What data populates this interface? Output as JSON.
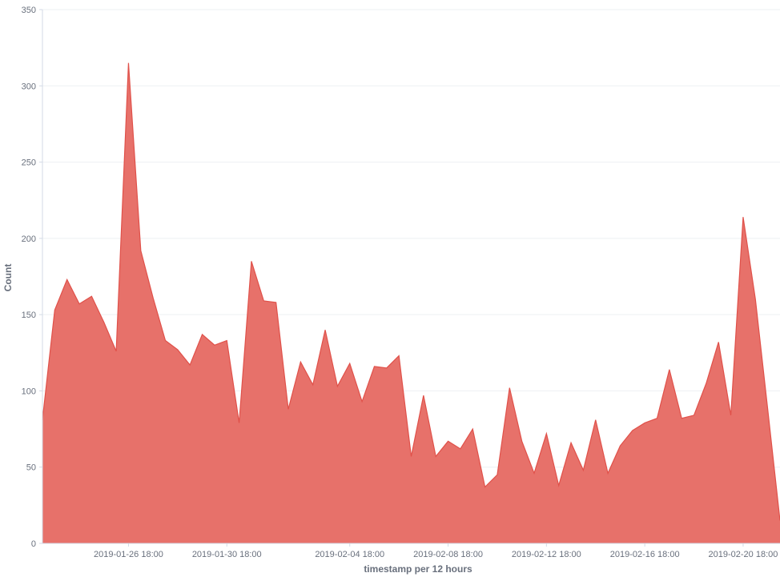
{
  "chart_data": {
    "type": "area",
    "xlabel": "timestamp per 12 hours",
    "ylabel": "Count",
    "ylim": [
      0,
      350
    ],
    "y_ticks": [
      0,
      50,
      100,
      150,
      200,
      250,
      300,
      350
    ],
    "x_tick_labels": [
      {
        "label": "2019-01-26 18:00",
        "index": 7
      },
      {
        "label": "2019-01-30 18:00",
        "index": 15
      },
      {
        "label": "2019-02-04 18:00",
        "index": 25
      },
      {
        "label": "2019-02-08 18:00",
        "index": 33
      },
      {
        "label": "2019-02-12 18:00",
        "index": 41
      },
      {
        "label": "2019-02-16 18:00",
        "index": 49
      },
      {
        "label": "2019-02-20 18:00",
        "index": 57
      }
    ],
    "interval_hours": 12,
    "grid": true,
    "series": [
      {
        "color": "#e7716a",
        "stroke": "#e0514a",
        "values": [
          81,
          153,
          173,
          157,
          162,
          145,
          126,
          315,
          192,
          161,
          133,
          127,
          117,
          137,
          130,
          133,
          79,
          185,
          159,
          158,
          88,
          119,
          104,
          140,
          103,
          118,
          93,
          116,
          115,
          123,
          57,
          97,
          57,
          67,
          62,
          75,
          37,
          45,
          102,
          67,
          46,
          72,
          38,
          66,
          48,
          81,
          46,
          64,
          74,
          79,
          82,
          114,
          82,
          84,
          105,
          132,
          84,
          214,
          160,
          88,
          15
        ]
      }
    ]
  }
}
